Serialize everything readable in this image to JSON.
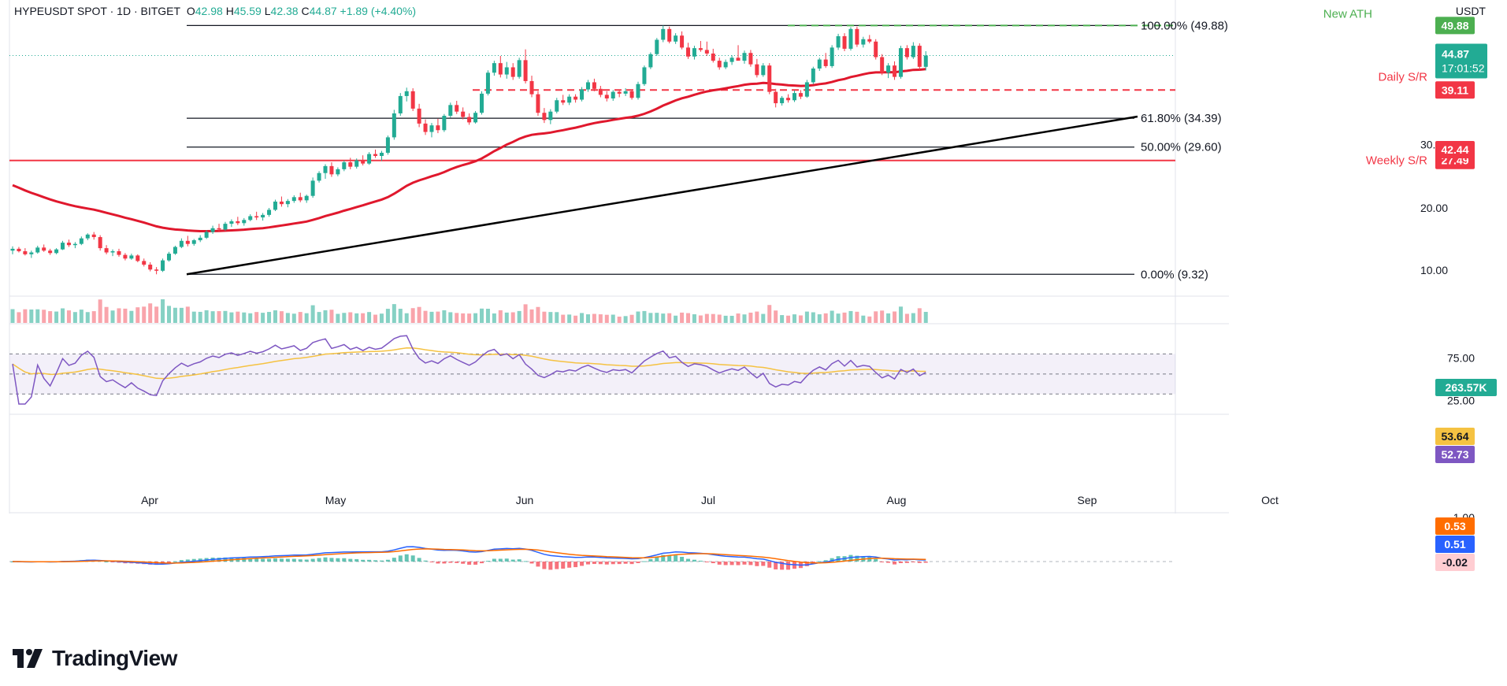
{
  "header": {
    "symbol": "HYPEUSDT SPOT · 1D · BITGET",
    "open_label": "O",
    "open": "42.98",
    "high_label": "H",
    "high": "45.59",
    "low_label": "L",
    "low": "42.38",
    "close_label": "C",
    "close": "44.87",
    "change": "+1.89 (+4.40%)",
    "currency": "USDT"
  },
  "branding": {
    "name": "TradingView"
  },
  "colors": {
    "up": "#22ab94",
    "down": "#f23645",
    "ema": "#e0182d",
    "trend": "#000000",
    "ath": "#4caf50",
    "rsi": "#7e57c2",
    "rsi_ma": "#f5c242",
    "macd": "#2962ff",
    "signal": "#ff6d00"
  },
  "chart_data": {
    "type": "candlestick",
    "x_axis": {
      "ticks": [
        "Apr",
        "May",
        "Jun",
        "Jul",
        "Aug",
        "Sep",
        "Oct"
      ]
    },
    "price_axis": {
      "ticks": [
        "10.00",
        "20.00",
        "30.00"
      ],
      "range": [
        7,
        52
      ]
    },
    "fibonacci": [
      {
        "label": "100.00% (49.88)",
        "value": 49.88
      },
      {
        "label": "61.80% (34.39)",
        "value": 34.39
      },
      {
        "label": "50.00% (29.60)",
        "value": 29.6
      },
      {
        "label": "0.00% (9.32)",
        "value": 9.32
      }
    ],
    "levels": [
      {
        "name": "New ATH",
        "value": 49.88,
        "badge": "49.88",
        "style": "dashed",
        "color": "#4caf50"
      },
      {
        "name": "Daily S/R",
        "value": 39.11,
        "badge": "39.11",
        "style": "dashed",
        "color": "#f23645"
      },
      {
        "name": "Weekly S/R",
        "value": 27.49,
        "badge": "27.49",
        "style": "solid",
        "color": "#f23645"
      }
    ],
    "price_badges": [
      {
        "text": "44.87",
        "sub": "17:01:52",
        "color": "#22ab94"
      },
      {
        "text": "42.44",
        "color": "#f23645"
      }
    ],
    "last_price": 44.87,
    "ema_value": 42.44,
    "volume": {
      "last_label": "263.57K"
    },
    "rsi": {
      "ticks": [
        "75.00",
        "25.00"
      ],
      "rsi_badge": "52.73",
      "ma_badge": "53.64",
      "upper": 70,
      "lower": 30
    },
    "macd": {
      "ticks": [
        "1.00"
      ],
      "signal_badge": "0.53",
      "macd_badge": "0.51",
      "hist_badge": "-0.02"
    },
    "candles": [
      [
        13.2,
        13.9,
        12.6,
        13.5
      ],
      [
        13.5,
        13.8,
        12.9,
        13.1
      ],
      [
        13.1,
        13.6,
        12.4,
        12.6
      ],
      [
        12.6,
        13.2,
        12.0,
        12.9
      ],
      [
        12.9,
        14.0,
        12.7,
        13.7
      ],
      [
        13.7,
        14.2,
        13.0,
        13.2
      ],
      [
        13.2,
        13.5,
        12.5,
        12.8
      ],
      [
        12.8,
        13.6,
        12.6,
        13.4
      ],
      [
        13.4,
        14.8,
        13.3,
        14.5
      ],
      [
        14.5,
        15.0,
        13.8,
        14.1
      ],
      [
        14.1,
        14.6,
        13.6,
        14.3
      ],
      [
        14.3,
        15.5,
        14.1,
        15.2
      ],
      [
        15.2,
        16.0,
        14.9,
        15.8
      ],
      [
        15.8,
        16.2,
        15.0,
        15.4
      ],
      [
        15.4,
        15.7,
        13.2,
        13.6
      ],
      [
        13.6,
        14.1,
        12.6,
        12.9
      ],
      [
        12.9,
        13.4,
        12.3,
        13.1
      ],
      [
        13.1,
        13.5,
        12.2,
        12.5
      ],
      [
        12.5,
        12.8,
        11.6,
        11.9
      ],
      [
        11.9,
        12.7,
        11.7,
        12.4
      ],
      [
        12.4,
        12.6,
        11.3,
        11.5
      ],
      [
        11.5,
        11.9,
        10.6,
        10.9
      ],
      [
        10.9,
        11.3,
        9.8,
        10.1
      ],
      [
        10.1,
        10.5,
        9.32,
        9.9
      ],
      [
        9.9,
        11.9,
        9.7,
        11.6
      ],
      [
        11.6,
        13.0,
        11.4,
        12.7
      ],
      [
        12.7,
        14.0,
        12.5,
        13.8
      ],
      [
        13.8,
        15.2,
        13.6,
        14.8
      ],
      [
        14.8,
        15.6,
        13.9,
        14.3
      ],
      [
        14.3,
        15.1,
        14.0,
        14.9
      ],
      [
        14.9,
        15.7,
        14.6,
        15.3
      ],
      [
        15.3,
        16.5,
        15.1,
        16.2
      ],
      [
        16.2,
        17.2,
        15.9,
        16.8
      ],
      [
        16.8,
        17.5,
        16.2,
        16.6
      ],
      [
        16.6,
        17.8,
        16.4,
        17.5
      ],
      [
        17.5,
        18.2,
        17.0,
        17.9
      ],
      [
        17.9,
        18.6,
        17.3,
        17.6
      ],
      [
        17.6,
        18.4,
        17.2,
        18.1
      ],
      [
        18.1,
        19.0,
        17.9,
        18.7
      ],
      [
        18.7,
        19.4,
        18.1,
        18.5
      ],
      [
        18.5,
        19.2,
        18.0,
        18.9
      ],
      [
        18.9,
        20.0,
        18.6,
        19.7
      ],
      [
        19.7,
        21.3,
        19.5,
        21.0
      ],
      [
        21.0,
        21.8,
        20.2,
        20.6
      ],
      [
        20.6,
        21.4,
        20.1,
        21.1
      ],
      [
        21.1,
        22.0,
        20.8,
        21.7
      ],
      [
        21.7,
        22.4,
        20.9,
        21.2
      ],
      [
        21.2,
        22.1,
        20.8,
        21.9
      ],
      [
        21.9,
        24.8,
        21.6,
        24.3
      ],
      [
        24.3,
        25.8,
        24.0,
        25.5
      ],
      [
        25.5,
        26.9,
        24.6,
        26.6
      ],
      [
        26.6,
        27.2,
        24.9,
        25.3
      ],
      [
        25.3,
        26.4,
        25.0,
        26.1
      ],
      [
        26.1,
        27.5,
        25.8,
        27.2
      ],
      [
        27.2,
        27.9,
        26.1,
        26.5
      ],
      [
        26.5,
        27.8,
        26.2,
        27.5
      ],
      [
        27.5,
        28.3,
        26.7,
        27.0
      ],
      [
        27.0,
        28.8,
        26.8,
        28.5
      ],
      [
        28.5,
        29.2,
        27.9,
        28.2
      ],
      [
        28.2,
        29.0,
        27.4,
        28.7
      ],
      [
        28.7,
        31.5,
        28.4,
        31.2
      ],
      [
        31.2,
        35.8,
        30.8,
        35.2
      ],
      [
        35.2,
        38.6,
        34.8,
        38.1
      ],
      [
        38.1,
        39.5,
        37.2,
        38.9
      ],
      [
        38.9,
        39.4,
        35.6,
        36.0
      ],
      [
        36.0,
        36.8,
        32.9,
        33.5
      ],
      [
        33.5,
        34.2,
        31.6,
        32.1
      ],
      [
        32.1,
        33.6,
        31.2,
        33.2
      ],
      [
        33.2,
        34.3,
        31.9,
        32.4
      ],
      [
        32.4,
        35.1,
        32.1,
        34.8
      ],
      [
        34.8,
        37.0,
        34.5,
        36.6
      ],
      [
        36.6,
        37.3,
        35.1,
        35.5
      ],
      [
        35.5,
        36.2,
        34.2,
        34.6
      ],
      [
        34.6,
        35.2,
        33.3,
        33.7
      ],
      [
        33.7,
        35.6,
        33.5,
        35.3
      ],
      [
        35.3,
        38.9,
        35.0,
        38.5
      ],
      [
        38.5,
        42.4,
        38.2,
        42.0
      ],
      [
        42.0,
        44.0,
        41.5,
        43.6
      ],
      [
        43.6,
        44.8,
        41.2,
        41.7
      ],
      [
        41.7,
        43.8,
        41.0,
        42.9
      ],
      [
        42.9,
        43.6,
        40.8,
        41.3
      ],
      [
        41.3,
        44.5,
        41.0,
        44.1
      ],
      [
        44.1,
        45.9,
        40.2,
        40.6
      ],
      [
        40.6,
        41.5,
        37.9,
        38.4
      ],
      [
        38.4,
        38.9,
        34.8,
        35.3
      ],
      [
        35.3,
        36.1,
        33.6,
        34.1
      ],
      [
        34.1,
        35.9,
        33.4,
        35.5
      ],
      [
        35.5,
        37.8,
        35.2,
        37.4
      ],
      [
        37.4,
        38.3,
        36.6,
        37.0
      ],
      [
        37.0,
        38.4,
        36.6,
        38.0
      ],
      [
        38.0,
        38.4,
        37.0,
        37.5
      ],
      [
        37.5,
        39.6,
        37.2,
        39.2
      ],
      [
        39.2,
        40.8,
        38.8,
        40.4
      ],
      [
        40.4,
        41.0,
        38.9,
        39.3
      ],
      [
        39.3,
        39.8,
        37.9,
        38.3
      ],
      [
        38.3,
        38.9,
        37.2,
        37.7
      ],
      [
        37.7,
        39.1,
        37.3,
        38.8
      ],
      [
        38.8,
        39.0,
        37.9,
        38.5
      ],
      [
        38.5,
        39.4,
        38.1,
        38.9
      ],
      [
        38.9,
        39.2,
        37.5,
        37.8
      ],
      [
        37.8,
        40.5,
        37.5,
        40.1
      ],
      [
        40.1,
        43.2,
        39.8,
        42.9
      ],
      [
        42.9,
        45.4,
        42.6,
        45.1
      ],
      [
        45.1,
        47.8,
        44.8,
        47.5
      ],
      [
        47.5,
        49.88,
        47.1,
        49.3
      ],
      [
        49.3,
        49.7,
        46.9,
        47.2
      ],
      [
        47.2,
        48.6,
        46.8,
        48.2
      ],
      [
        48.2,
        48.9,
        45.9,
        46.2
      ],
      [
        46.2,
        47.0,
        44.3,
        44.7
      ],
      [
        44.7,
        46.5,
        44.2,
        46.1
      ],
      [
        46.1,
        47.3,
        45.5,
        45.8
      ],
      [
        45.8,
        47.2,
        44.8,
        45.2
      ],
      [
        45.2,
        46.0,
        43.7,
        44.0
      ],
      [
        44.0,
        44.5,
        42.5,
        42.9
      ],
      [
        42.9,
        44.2,
        42.6,
        43.8
      ],
      [
        43.8,
        44.9,
        43.3,
        44.5
      ],
      [
        44.5,
        46.6,
        44.1,
        44.0
      ],
      [
        44.0,
        45.7,
        43.5,
        45.3
      ],
      [
        45.3,
        45.8,
        43.0,
        43.4
      ],
      [
        43.4,
        44.3,
        41.2,
        41.6
      ],
      [
        41.6,
        43.6,
        41.3,
        43.2
      ],
      [
        43.2,
        43.6,
        38.4,
        38.8
      ],
      [
        38.8,
        39.3,
        36.2,
        36.9
      ],
      [
        36.9,
        38.1,
        36.5,
        37.8
      ],
      [
        37.8,
        38.4,
        37.0,
        37.4
      ],
      [
        37.4,
        39.0,
        37.1,
        38.6
      ],
      [
        38.6,
        39.1,
        37.6,
        38.0
      ],
      [
        38.0,
        40.8,
        37.8,
        40.4
      ],
      [
        40.4,
        43.0,
        40.1,
        42.7
      ],
      [
        42.7,
        44.5,
        42.3,
        44.2
      ],
      [
        44.2,
        45.3,
        42.8,
        43.1
      ],
      [
        43.1,
        46.6,
        42.8,
        46.2
      ],
      [
        46.2,
        48.5,
        45.8,
        48.1
      ],
      [
        48.1,
        48.6,
        45.6,
        46.0
      ],
      [
        46.0,
        49.6,
        45.7,
        49.3
      ],
      [
        49.3,
        49.7,
        46.3,
        46.7
      ],
      [
        46.7,
        48.0,
        46.2,
        47.6
      ],
      [
        47.6,
        48.3,
        46.9,
        47.2
      ],
      [
        47.2,
        47.6,
        44.2,
        44.6
      ],
      [
        44.6,
        45.1,
        41.6,
        42.0
      ],
      [
        42.0,
        43.6,
        41.1,
        43.2
      ],
      [
        43.2,
        43.9,
        40.8,
        41.3
      ],
      [
        41.3,
        46.5,
        41.0,
        46.1
      ],
      [
        46.1,
        46.6,
        44.2,
        44.6
      ],
      [
        44.6,
        47.1,
        44.3,
        46.5
      ],
      [
        46.5,
        46.9,
        42.4,
        42.98
      ],
      [
        42.98,
        45.59,
        42.38,
        44.87
      ]
    ]
  }
}
